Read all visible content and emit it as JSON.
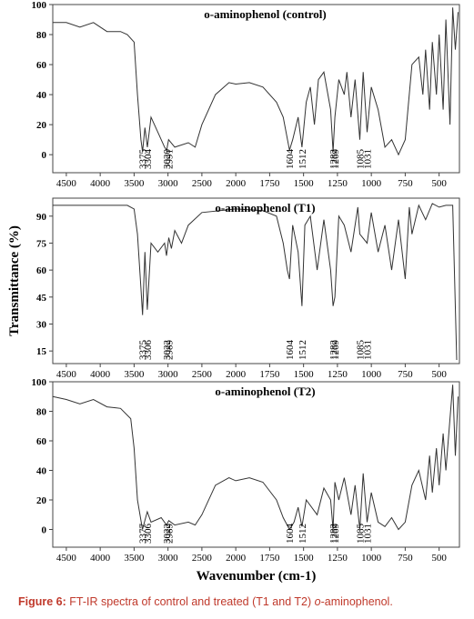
{
  "chart_data": [
    {
      "type": "line",
      "title": "o-aminophenol (control)",
      "color": "#333333",
      "xlim": [
        4700,
        350
      ],
      "xticks": [
        4500,
        4000,
        3500,
        3000,
        2500,
        2000,
        1750,
        1500,
        1250,
        1000,
        750,
        500
      ],
      "ylim": [
        -12,
        100
      ],
      "yticks": [
        0,
        20,
        40,
        60,
        80,
        100
      ],
      "x": [
        4700,
        4500,
        4300,
        4100,
        3900,
        3700,
        3600,
        3500,
        3450,
        3400,
        3375,
        3340,
        3304,
        3250,
        3150,
        3050,
        3020,
        2991,
        2900,
        2700,
        2600,
        2500,
        2300,
        2100,
        2000,
        1900,
        1800,
        1700,
        1650,
        1604,
        1580,
        1540,
        1512,
        1480,
        1450,
        1420,
        1390,
        1350,
        1300,
        1282,
        1269,
        1240,
        1200,
        1180,
        1150,
        1120,
        1085,
        1060,
        1031,
        1000,
        950,
        900,
        850,
        800,
        750,
        700,
        650,
        620,
        600,
        570,
        550,
        520,
        500,
        470,
        450,
        420,
        400,
        380,
        360
      ],
      "values": [
        88,
        88,
        85,
        88,
        82,
        82,
        80,
        75,
        40,
        10,
        2,
        18,
        5,
        25,
        15,
        5,
        3,
        10,
        5,
        8,
        5,
        20,
        40,
        48,
        47,
        48,
        45,
        35,
        25,
        3,
        10,
        25,
        5,
        35,
        45,
        20,
        50,
        55,
        30,
        2,
        25,
        50,
        40,
        55,
        25,
        50,
        10,
        55,
        15,
        45,
        30,
        5,
        10,
        0,
        10,
        60,
        65,
        40,
        70,
        30,
        75,
        40,
        80,
        30,
        90,
        20,
        98,
        70,
        95
      ],
      "peak_labels": [
        3375,
        3304,
        3020,
        2991,
        1604,
        1512,
        1269,
        1282,
        1085,
        1031
      ]
    },
    {
      "type": "line",
      "title": "o-aminophenol (T1)",
      "color": "#333333",
      "ylabel": "Transmittance (%)",
      "xlim": [
        4700,
        350
      ],
      "xticks": [
        4500,
        4000,
        3500,
        3000,
        2500,
        2000,
        1750,
        1500,
        1250,
        1000,
        750,
        500
      ],
      "ylim": [
        8,
        100
      ],
      "yticks": [
        15,
        30,
        45,
        60,
        75,
        90
      ],
      "x": [
        4700,
        3600,
        3500,
        3450,
        3400,
        3375,
        3340,
        3306,
        3250,
        3150,
        3050,
        3022,
        2989,
        2950,
        2900,
        2800,
        2700,
        2500,
        2000,
        1800,
        1700,
        1650,
        1620,
        1604,
        1580,
        1540,
        1512,
        1490,
        1450,
        1400,
        1350,
        1300,
        1282,
        1269,
        1240,
        1200,
        1150,
        1100,
        1085,
        1031,
        1000,
        950,
        900,
        850,
        800,
        750,
        720,
        700,
        650,
        600,
        550,
        500,
        450,
        400,
        370
      ],
      "values": [
        96,
        96,
        94,
        80,
        50,
        35,
        70,
        38,
        75,
        70,
        75,
        68,
        78,
        72,
        82,
        75,
        85,
        92,
        94,
        93,
        90,
        75,
        60,
        55,
        85,
        70,
        40,
        85,
        90,
        60,
        88,
        60,
        40,
        45,
        90,
        85,
        70,
        95,
        80,
        75,
        92,
        70,
        85,
        60,
        88,
        55,
        95,
        80,
        96,
        88,
        97,
        95,
        96,
        96,
        10
      ],
      "peak_labels": [
        3375,
        3306,
        3022,
        2989,
        1604,
        1512,
        1282,
        1269,
        1085,
        1031
      ]
    },
    {
      "type": "line",
      "title": "o-aminophenol (T2)",
      "color": "#333333",
      "xlabel": "Wavenumber (cm-1)",
      "xlim": [
        4700,
        350
      ],
      "xticks": [
        4500,
        4000,
        3500,
        3000,
        2500,
        2000,
        1750,
        1500,
        1250,
        1000,
        750,
        500
      ],
      "ylim": [
        -12,
        100
      ],
      "yticks": [
        0,
        20,
        40,
        60,
        80,
        100
      ],
      "x": [
        4700,
        4500,
        4300,
        4100,
        3900,
        3700,
        3550,
        3500,
        3450,
        3377,
        3330,
        3306,
        3250,
        3100,
        3022,
        2989,
        2900,
        2700,
        2600,
        2500,
        2300,
        2100,
        2000,
        1900,
        1800,
        1700,
        1650,
        1604,
        1570,
        1540,
        1512,
        1480,
        1400,
        1350,
        1300,
        1282,
        1269,
        1240,
        1200,
        1150,
        1120,
        1085,
        1060,
        1031,
        1000,
        950,
        900,
        850,
        800,
        750,
        700,
        650,
        600,
        570,
        550,
        520,
        500,
        470,
        450,
        420,
        400,
        380,
        360
      ],
      "values": [
        90,
        88,
        85,
        88,
        83,
        82,
        75,
        55,
        20,
        0,
        8,
        12,
        5,
        8,
        3,
        6,
        3,
        5,
        3,
        10,
        30,
        35,
        33,
        35,
        32,
        20,
        8,
        0,
        5,
        15,
        2,
        20,
        10,
        28,
        20,
        0,
        32,
        20,
        35,
        10,
        30,
        0,
        38,
        5,
        25,
        5,
        2,
        8,
        0,
        5,
        30,
        40,
        20,
        50,
        25,
        55,
        30,
        65,
        40,
        75,
        98,
        50,
        90
      ],
      "peak_labels": [
        3377,
        3306,
        3022,
        2989,
        1604,
        1512,
        1282,
        1269,
        1085,
        1031
      ]
    }
  ],
  "caption": {
    "label": "Figure 6:",
    "text": "FT-IR spectra of control and treated (T1 and T2) ",
    "italic": "o",
    "end": "-aminophenol."
  }
}
